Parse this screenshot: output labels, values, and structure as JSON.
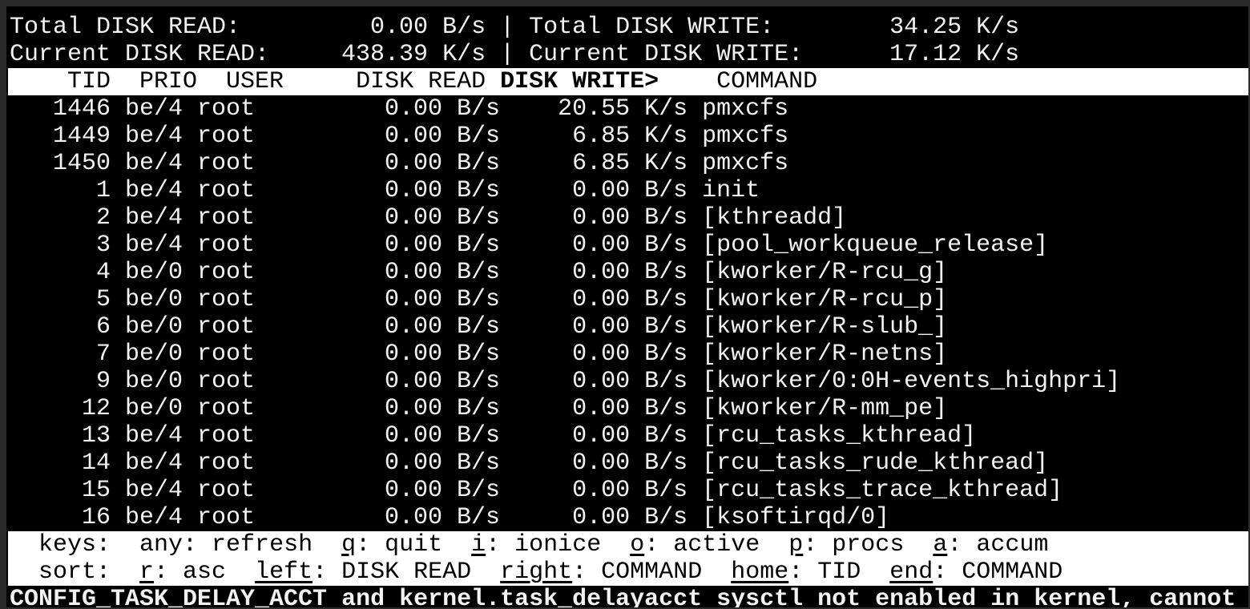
{
  "summary": {
    "total_read_label": "Total DISK READ:",
    "total_read": "0.00 B/s",
    "total_write_label": "Total DISK WRITE:",
    "total_write": "34.25 K/s",
    "current_read_label": "Current DISK READ:",
    "current_read": "438.39 K/s",
    "current_write_label": "Current DISK WRITE:",
    "current_write": "17.12 K/s",
    "separator": "|"
  },
  "columns": {
    "tid": "TID",
    "prio": "PRIO",
    "user": "USER",
    "disk_read": "DISK READ",
    "disk_write": "DISK WRITE>",
    "command": "COMMAND",
    "sorted_column": "disk_write"
  },
  "rows": [
    {
      "tid": "1446",
      "prio": "be/4",
      "user": "root",
      "disk_read": "0.00 B/s",
      "disk_write": "20.55 K/s",
      "command": "pmxcfs"
    },
    {
      "tid": "1449",
      "prio": "be/4",
      "user": "root",
      "disk_read": "0.00 B/s",
      "disk_write": "6.85 K/s",
      "command": "pmxcfs"
    },
    {
      "tid": "1450",
      "prio": "be/4",
      "user": "root",
      "disk_read": "0.00 B/s",
      "disk_write": "6.85 K/s",
      "command": "pmxcfs"
    },
    {
      "tid": "1",
      "prio": "be/4",
      "user": "root",
      "disk_read": "0.00 B/s",
      "disk_write": "0.00 B/s",
      "command": "init"
    },
    {
      "tid": "2",
      "prio": "be/4",
      "user": "root",
      "disk_read": "0.00 B/s",
      "disk_write": "0.00 B/s",
      "command": "[kthreadd]"
    },
    {
      "tid": "3",
      "prio": "be/4",
      "user": "root",
      "disk_read": "0.00 B/s",
      "disk_write": "0.00 B/s",
      "command": "[pool_workqueue_release]"
    },
    {
      "tid": "4",
      "prio": "be/0",
      "user": "root",
      "disk_read": "0.00 B/s",
      "disk_write": "0.00 B/s",
      "command": "[kworker/R-rcu_g]"
    },
    {
      "tid": "5",
      "prio": "be/0",
      "user": "root",
      "disk_read": "0.00 B/s",
      "disk_write": "0.00 B/s",
      "command": "[kworker/R-rcu_p]"
    },
    {
      "tid": "6",
      "prio": "be/0",
      "user": "root",
      "disk_read": "0.00 B/s",
      "disk_write": "0.00 B/s",
      "command": "[kworker/R-slub_]"
    },
    {
      "tid": "7",
      "prio": "be/0",
      "user": "root",
      "disk_read": "0.00 B/s",
      "disk_write": "0.00 B/s",
      "command": "[kworker/R-netns]"
    },
    {
      "tid": "9",
      "prio": "be/0",
      "user": "root",
      "disk_read": "0.00 B/s",
      "disk_write": "0.00 B/s",
      "command": "[kworker/0:0H-events_highpri]"
    },
    {
      "tid": "12",
      "prio": "be/0",
      "user": "root",
      "disk_read": "0.00 B/s",
      "disk_write": "0.00 B/s",
      "command": "[kworker/R-mm_pe]"
    },
    {
      "tid": "13",
      "prio": "be/4",
      "user": "root",
      "disk_read": "0.00 B/s",
      "disk_write": "0.00 B/s",
      "command": "[rcu_tasks_kthread]"
    },
    {
      "tid": "14",
      "prio": "be/4",
      "user": "root",
      "disk_read": "0.00 B/s",
      "disk_write": "0.00 B/s",
      "command": "[rcu_tasks_rude_kthread]"
    },
    {
      "tid": "15",
      "prio": "be/4",
      "user": "root",
      "disk_read": "0.00 B/s",
      "disk_write": "0.00 B/s",
      "command": "[rcu_tasks_trace_kthread]"
    },
    {
      "tid": "16",
      "prio": "be/4",
      "user": "root",
      "disk_read": "0.00 B/s",
      "disk_write": "0.00 B/s",
      "command": "[ksoftirqd/0]"
    }
  ],
  "footer": {
    "keys_label": "keys:",
    "keys": [
      {
        "key": "any",
        "label": ": refresh",
        "underline": false
      },
      {
        "key": "q",
        "label": ": quit",
        "underline": true
      },
      {
        "key": "i",
        "label": ": ionice",
        "underline": true
      },
      {
        "key": "o",
        "label": ": active",
        "underline": true
      },
      {
        "key": "p",
        "label": ": procs",
        "underline": true
      },
      {
        "key": "a",
        "label": ": accum",
        "underline": true
      }
    ],
    "sort_label": "sort:",
    "sort": [
      {
        "key": "r",
        "label": ": asc",
        "underline": true
      },
      {
        "key": "left",
        "label": ": DISK READ",
        "underline": true
      },
      {
        "key": "right",
        "label": ": COMMAND",
        "underline": true
      },
      {
        "key": "home",
        "label": ": TID",
        "underline": true
      },
      {
        "key": "end",
        "label": ": COMMAND",
        "underline": true
      }
    ]
  },
  "status_message": "CONFIG_TASK_DELAY_ACCT and kernel.task_delayacct sysctl not enabled in kernel, cannot",
  "colors": {
    "background": "#000000",
    "foreground": "#f2f2f2",
    "inverse_bg": "#ffffff",
    "inverse_fg": "#000000"
  }
}
